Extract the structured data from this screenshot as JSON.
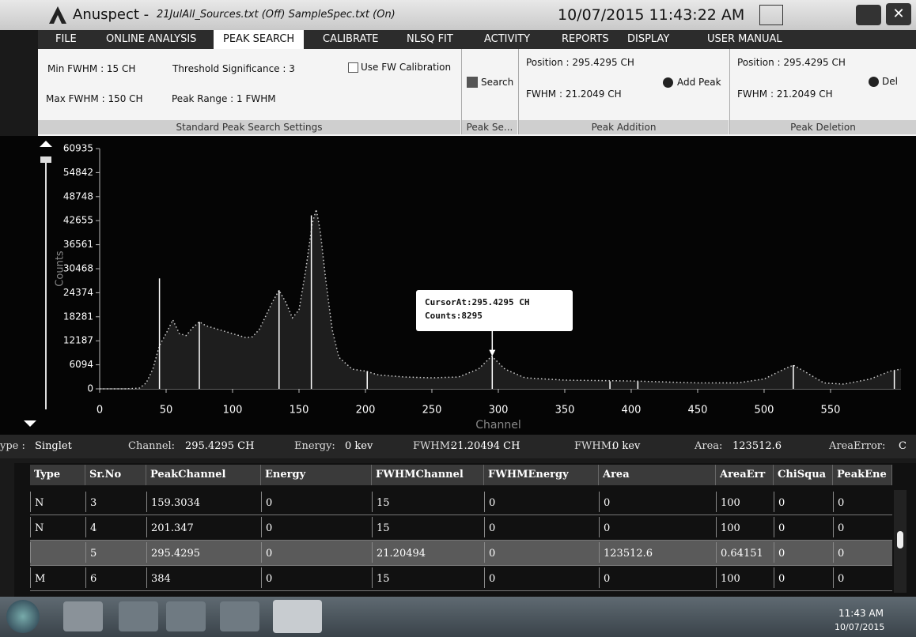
{
  "title_bar": {
    "app": "Anuspect -",
    "files": "21JulAll_Sources.txt (Off)  SampleSpec.txt (On)",
    "datetime": "10/07/2015 11:43:22 AM"
  },
  "menu": [
    {
      "label": "FILE",
      "active": false
    },
    {
      "label": "ONLINE ANALYSIS",
      "active": false
    },
    {
      "label": "PEAK SEARCH",
      "active": true
    },
    {
      "label": "CALIBRATE",
      "active": false
    },
    {
      "label": "NLSQ FIT",
      "active": false
    },
    {
      "label": "ACTIVITY",
      "active": false
    },
    {
      "label": "REPORTS",
      "active": false
    },
    {
      "label": "DISPLAY",
      "active": false
    },
    {
      "label": "USER MANUAL",
      "active": false
    }
  ],
  "ribbon": {
    "min_fwhm": "Min FWHM :  15 CH",
    "threshold": "Threshold Significance :  3",
    "use_fw": "Use FW Calibration",
    "max_fwhm": "Max FWHM :  150 CH",
    "peak_range": "Peak Range :  1 FWHM",
    "group_settings": "Standard Peak Search Settings",
    "search": "Search",
    "group_search": "Peak Se...",
    "add_position": "Position :  295.4295 CH",
    "add_fwhm": "FWHM :  21.2049 CH",
    "add_peak": "Add Peak",
    "group_addition": "Peak Addition",
    "del_position": "Position :  295.4295 CH",
    "del_fwhm": "FWHM :  21.2049 CH",
    "del_peak": "Del",
    "group_deletion": "Peak Deletion"
  },
  "spectrum": {
    "type": "line",
    "y_label": "Counts",
    "x_label": "Channel",
    "color": "#d0d0d0",
    "xlim": [
      0,
      603
    ],
    "ylim": [
      0,
      60935
    ],
    "xticks": [
      0,
      50,
      100,
      150,
      200,
      250,
      300,
      350,
      400,
      450,
      500,
      550
    ],
    "yticks": [
      0,
      6094,
      12187,
      18281,
      24374,
      30468,
      36561,
      42655,
      48748,
      54842,
      60935
    ],
    "x": [
      0,
      20,
      30,
      35,
      40,
      45,
      50,
      55,
      60,
      65,
      70,
      75,
      80,
      90,
      100,
      110,
      115,
      120,
      130,
      135,
      140,
      145,
      150,
      155,
      160,
      163,
      166,
      170,
      175,
      180,
      190,
      200,
      210,
      230,
      250,
      270,
      285,
      295,
      305,
      320,
      350,
      400,
      450,
      480,
      500,
      515,
      522,
      530,
      545,
      560,
      580,
      595,
      603
    ],
    "y": [
      0,
      0,
      200,
      1500,
      5000,
      11000,
      14000,
      17500,
      14000,
      13500,
      15500,
      17000,
      16000,
      15000,
      14000,
      13000,
      13200,
      15000,
      22000,
      25000,
      22000,
      18000,
      20000,
      30000,
      42000,
      45500,
      40000,
      28000,
      15000,
      8000,
      5000,
      4500,
      3500,
      3000,
      2800,
      3000,
      5000,
      8295,
      5000,
      2800,
      2200,
      2000,
      1500,
      1500,
      2500,
      5000,
      6000,
      4500,
      1500,
      1200,
      2500,
      4500,
      5000
    ],
    "peak_markers": {
      "channels": [
        45,
        75,
        135,
        159.3034,
        201.347,
        295.4295,
        384,
        405,
        522,
        598
      ],
      "counts": [
        28000,
        17000,
        25000,
        44000,
        4500,
        8295,
        1900,
        1900,
        6000,
        4700
      ]
    },
    "cursor": {
      "text": "CursorAt:295.4295 CH",
      "counts_text": "Counts:8295",
      "channel": 295.4295,
      "counts": 8295
    }
  },
  "status": [
    {
      "label": "ype :",
      "value": "Singlet"
    },
    {
      "label": "Channel:",
      "value": "295.4295 CH"
    },
    {
      "label": "Energy:",
      "value": "0 kev"
    },
    {
      "label": "FWHM:",
      "value": "21.20494 CH"
    },
    {
      "label": "FWHM:",
      "value": "0 kev"
    },
    {
      "label": "Area:",
      "value": "123512.6"
    },
    {
      "label": "AreaError:",
      "value": "C"
    }
  ],
  "table": {
    "headers": [
      "Type",
      "Sr.No",
      "PeakChannel",
      "Energy",
      "FWHMChannel",
      "FWHMEnergy",
      "Area",
      "AreaErr",
      "ChiSqua",
      "PeakEne"
    ],
    "rows": [
      [
        "N",
        "3",
        "159.3034",
        "0",
        "15",
        "0",
        "0",
        "100",
        "0",
        "0"
      ],
      [
        "N",
        "4",
        "201.347",
        "0",
        "15",
        "0",
        "0",
        "100",
        "0",
        "0"
      ],
      [
        "",
        "5",
        "295.4295",
        "0",
        "21.20494",
        "0",
        "123512.6",
        "0.64151",
        "0",
        "0"
      ],
      [
        "M",
        "6",
        "384",
        "0",
        "15",
        "0",
        "0",
        "100",
        "0",
        "0"
      ]
    ],
    "selected_row": 2
  },
  "taskbar": {
    "time": "11:43 AM",
    "date": "10/07/2015"
  }
}
